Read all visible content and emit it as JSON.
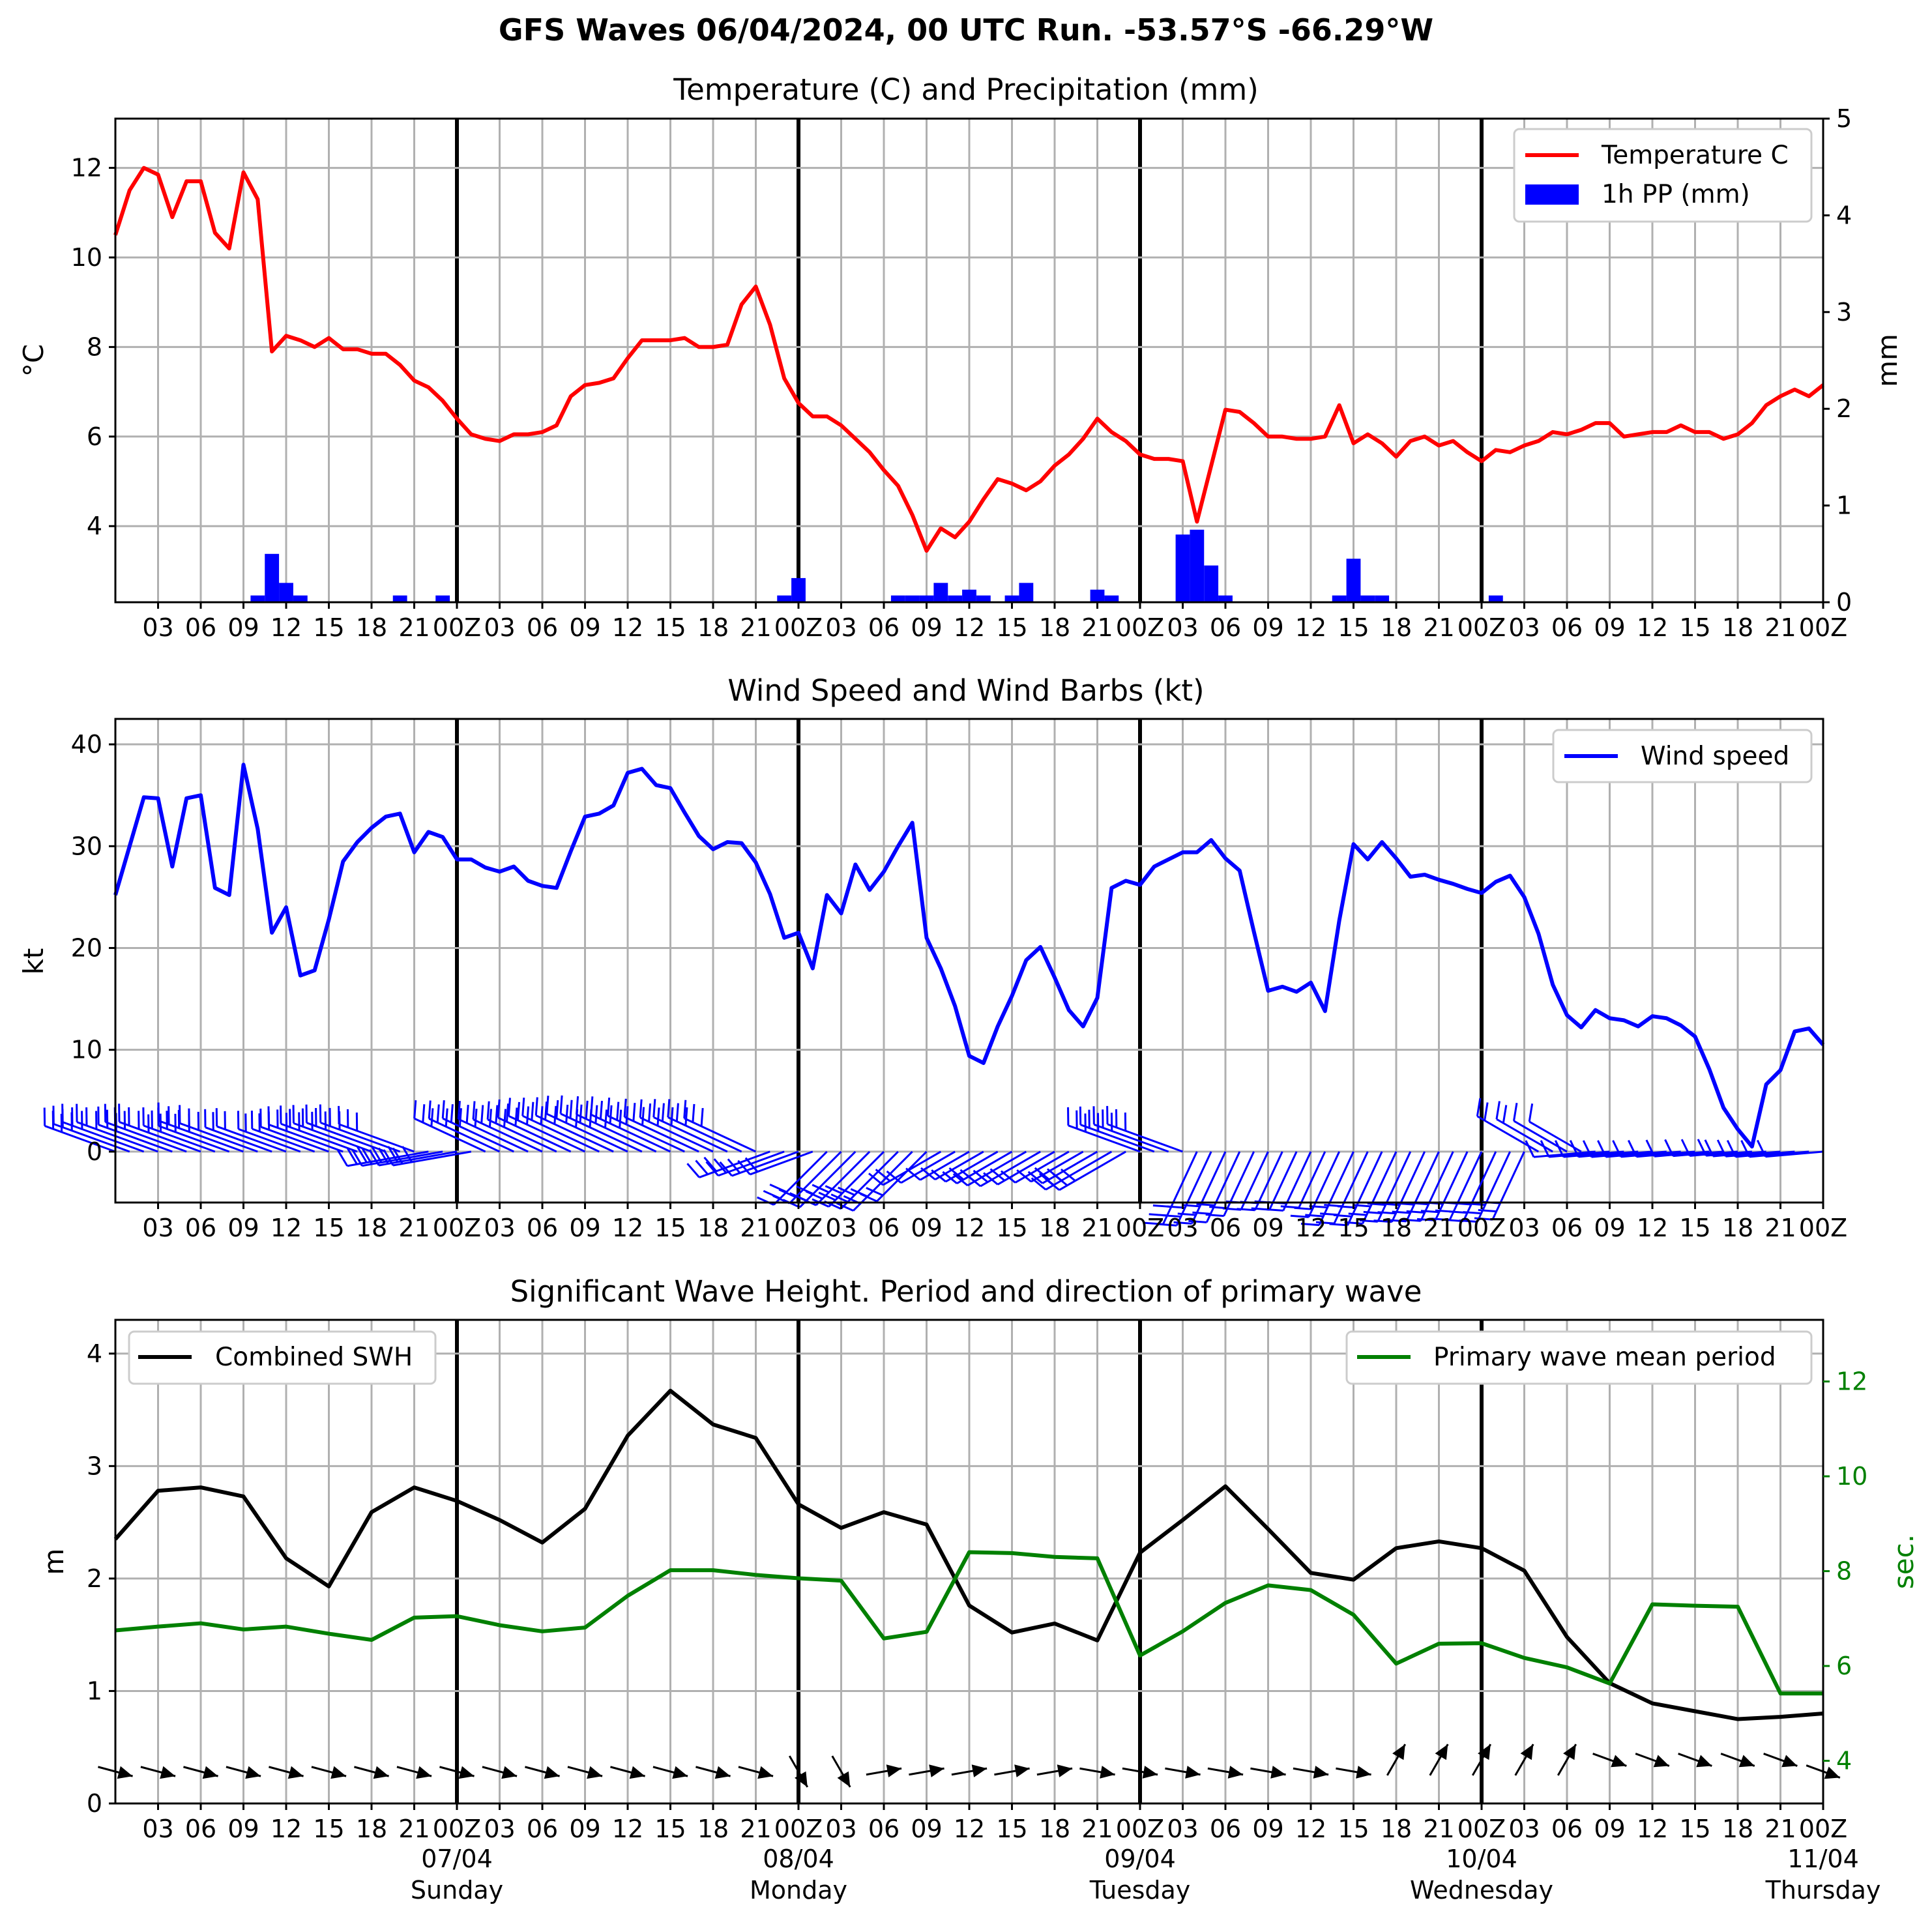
{
  "figure": {
    "suptitle": "GFS Waves 06/04/2024, 00 UTC Run. -53.57°S -66.29°W"
  },
  "colors": {
    "temperature": "#ff0000",
    "precip": "#0000ff",
    "wind": "#0000ff",
    "swh": "#000000",
    "period": "#008000",
    "grid": "#b0b0b0"
  },
  "x_tick_labels": [
    "03",
    "06",
    "09",
    "12",
    "15",
    "18",
    "21",
    "00Z",
    "03",
    "06",
    "09",
    "12",
    "15",
    "18",
    "21",
    "00Z",
    "03",
    "06",
    "09",
    "12",
    "15",
    "18",
    "21",
    "00Z",
    "03",
    "06",
    "09",
    "12",
    "15",
    "18",
    "21",
    "00Z",
    "03",
    "06",
    "09",
    "12",
    "15",
    "18",
    "21",
    "00Z"
  ],
  "day_labels": [
    {
      "date": "07/04",
      "day": "Sunday"
    },
    {
      "date": "08/04",
      "day": "Monday"
    },
    {
      "date": "09/04",
      "day": "Tuesday"
    },
    {
      "date": "10/04",
      "day": "Wednesday"
    },
    {
      "date": "11/04",
      "day": "Thursday"
    }
  ],
  "panels": {
    "temp": {
      "title": "Temperature (C) and Precipitation (mm)",
      "ylabel_left": "°C",
      "ylabel_right": "mm",
      "legend_temp": "Temperature C",
      "legend_pp": "1h PP (mm)",
      "y_ticks": [
        "4",
        "6",
        "8",
        "10",
        "12"
      ],
      "y2_ticks": [
        "0",
        "1",
        "2",
        "3",
        "4",
        "5"
      ]
    },
    "wind": {
      "title": "Wind Speed and Wind Barbs (kt)",
      "ylabel": "kt",
      "legend": "Wind speed",
      "y_ticks": [
        "0",
        "10",
        "20",
        "30",
        "40"
      ]
    },
    "wave": {
      "title": "Significant Wave Height. Period and direction of primary wave",
      "ylabel_left": "m",
      "ylabel_right": "sec.",
      "legend_swh": "Combined SWH",
      "legend_period": "Primary wave mean period",
      "y_ticks": [
        "0",
        "1",
        "2",
        "3",
        "4"
      ],
      "y2_ticks": [
        "4",
        "6",
        "8",
        "10",
        "12"
      ]
    }
  },
  "chart_data": [
    {
      "type": "line",
      "title": "Temperature (C) and Precipitation (mm)",
      "x_unit": "hours since 06/04 00Z",
      "ylabel": "°C",
      "ylim": [
        2.3,
        13.1
      ],
      "y2label": "mm",
      "y2lim": [
        0,
        5
      ],
      "grid": true,
      "legend_position": "top-right",
      "series": [
        {
          "name": "Temperature C",
          "x": [
            0,
            1,
            2,
            3,
            4,
            5,
            6,
            7,
            8,
            9,
            10,
            11,
            12,
            13,
            14,
            15,
            16,
            17,
            18,
            19,
            20,
            21,
            22,
            23,
            24,
            25,
            26,
            27,
            28,
            29,
            30,
            31,
            32,
            33,
            34,
            35,
            36,
            37,
            38,
            39,
            40,
            41,
            42,
            43,
            44,
            45,
            46,
            47,
            48,
            49,
            50,
            51,
            52,
            53,
            54,
            55,
            56,
            57,
            58,
            59,
            60,
            61,
            62,
            63,
            64,
            65,
            66,
            67,
            68,
            69,
            70,
            71,
            72,
            73,
            74,
            75,
            76,
            77,
            78,
            79,
            80,
            81,
            82,
            83,
            84,
            85,
            86,
            87,
            88,
            89,
            90,
            91,
            92,
            93,
            94,
            95,
            96,
            97,
            98,
            99,
            100,
            101,
            102,
            103,
            104,
            105,
            106,
            107,
            108,
            109,
            110,
            111,
            112,
            113,
            114,
            115,
            116,
            117,
            118,
            119,
            120
          ],
          "values": [
            10.5,
            11.5,
            12.0,
            11.85,
            10.9,
            11.7,
            11.7,
            10.55,
            10.2,
            11.9,
            11.3,
            7.9,
            8.25,
            8.15,
            8.0,
            8.2,
            7.95,
            7.95,
            7.85,
            7.85,
            7.6,
            7.25,
            7.1,
            6.8,
            6.4,
            6.05,
            5.95,
            5.9,
            6.05,
            6.05,
            6.1,
            6.25,
            6.9,
            7.15,
            7.2,
            7.3,
            7.75,
            8.15,
            8.15,
            8.15,
            8.2,
            8.0,
            8.0,
            8.05,
            8.95,
            9.35,
            8.5,
            7.3,
            6.75,
            6.45,
            6.45,
            6.25,
            5.95,
            5.65,
            5.25,
            4.9,
            4.25,
            3.45,
            3.95,
            3.75,
            4.1,
            4.6,
            5.05,
            4.95,
            4.8,
            5.0,
            5.35,
            5.6,
            5.95,
            6.4,
            6.1,
            5.9,
            5.6,
            5.5,
            5.5,
            5.45,
            4.1,
            5.35,
            6.6,
            6.55,
            6.3,
            6.0,
            6.0,
            5.95,
            5.95,
            6.0,
            6.7,
            5.85,
            6.05,
            5.85,
            5.55,
            5.9,
            6.0,
            5.8,
            5.9,
            5.65,
            5.45,
            5.7,
            5.65,
            5.8,
            5.9,
            6.1,
            6.05,
            6.15,
            6.3,
            6.3,
            6.0,
            6.05,
            6.1,
            6.1,
            6.25,
            6.1,
            6.1,
            5.95,
            6.05,
            6.3,
            6.7,
            6.9,
            7.05,
            6.9,
            7.15
          ]
        },
        {
          "name": "1h PP (mm)",
          "type": "bar",
          "x": [
            10,
            11,
            12,
            13,
            20,
            23,
            47,
            48,
            55,
            56,
            57,
            58,
            59,
            60,
            61,
            63,
            64,
            69,
            70,
            75,
            76,
            77,
            78,
            86,
            87,
            88,
            89,
            97
          ],
          "values": [
            0.07,
            0.5,
            0.2,
            0.07,
            0.07,
            0.07,
            0.07,
            0.25,
            0.07,
            0.07,
            0.07,
            0.2,
            0.07,
            0.13,
            0.07,
            0.07,
            0.2,
            0.13,
            0.07,
            0.7,
            0.75,
            0.38,
            0.07,
            0.07,
            0.45,
            0.07,
            0.07,
            0.07
          ]
        }
      ]
    },
    {
      "type": "line",
      "title": "Wind Speed and Wind Barbs (kt)",
      "x_unit": "hours since 06/04 00Z",
      "ylabel": "kt",
      "ylim": [
        -5,
        42.5
      ],
      "grid": true,
      "legend_position": "top-right",
      "series": [
        {
          "name": "Wind speed",
          "x": [
            0,
            1,
            2,
            3,
            4,
            5,
            6,
            7,
            8,
            9,
            10,
            11,
            12,
            13,
            14,
            15,
            16,
            17,
            18,
            19,
            20,
            21,
            22,
            23,
            24,
            25,
            26,
            27,
            28,
            29,
            30,
            31,
            32,
            33,
            34,
            35,
            36,
            37,
            38,
            39,
            40,
            41,
            42,
            43,
            44,
            45,
            46,
            47,
            48,
            49,
            50,
            51,
            52,
            53,
            54,
            55,
            56,
            57,
            58,
            59,
            60,
            61,
            62,
            63,
            64,
            65,
            66,
            67,
            68,
            69,
            70,
            71,
            72,
            73,
            74,
            75,
            76,
            77,
            78,
            79,
            80,
            81,
            82,
            83,
            84,
            85,
            86,
            87,
            88,
            89,
            90,
            91,
            92,
            93,
            94,
            95,
            96,
            97,
            98,
            99,
            100,
            101,
            102,
            103,
            104,
            105,
            106,
            107,
            108,
            109,
            110,
            111,
            112,
            113,
            114,
            115,
            116,
            117,
            118,
            119,
            120
          ],
          "values": [
            25.2,
            30.0,
            34.8,
            34.7,
            28.0,
            34.7,
            35.0,
            25.9,
            25.2,
            38.0,
            31.7,
            21.5,
            24.0,
            17.3,
            17.8,
            22.8,
            28.5,
            30.4,
            31.8,
            32.9,
            33.2,
            29.4,
            31.4,
            30.9,
            28.7,
            28.7,
            27.9,
            27.5,
            28.0,
            26.6,
            26.1,
            25.9,
            29.5,
            32.9,
            33.2,
            34.0,
            37.2,
            37.6,
            36.0,
            35.7,
            33.3,
            31.0,
            29.7,
            30.4,
            30.3,
            28.4,
            25.3,
            21.0,
            21.5,
            18.0,
            25.2,
            23.4,
            28.2,
            25.7,
            27.5,
            30.0,
            32.3,
            21.0,
            18.0,
            14.3,
            9.4,
            8.7,
            12.3,
            15.3,
            18.8,
            20.1,
            17.1,
            13.9,
            12.3,
            15.1,
            25.9,
            26.6,
            26.2,
            28.0,
            28.7,
            29.4,
            29.4,
            30.6,
            28.8,
            27.6,
            21.6,
            15.8,
            16.2,
            15.7,
            16.6,
            13.8,
            22.7,
            30.2,
            28.7,
            30.4,
            28.8,
            27.0,
            27.2,
            26.7,
            26.3,
            25.8,
            25.4,
            26.5,
            27.1,
            25.0,
            21.4,
            16.4,
            13.4,
            12.2,
            13.9,
            13.1,
            12.9,
            12.3,
            13.3,
            13.1,
            12.4,
            11.3,
            8.1,
            4.3,
            2.2,
            0.5,
            6.6,
            8.0,
            11.8,
            12.1,
            10.5
          ]
        }
      ]
    },
    {
      "type": "line",
      "title": "Significant Wave Height. Period and direction of primary wave",
      "x_unit": "hours since 06/04 00Z",
      "ylabel": "m",
      "ylim": [
        0,
        4.3
      ],
      "y2label": "sec.",
      "y2lim": [
        3.1,
        13.3
      ],
      "grid": true,
      "series": [
        {
          "name": "Combined SWH",
          "x": [
            0,
            3,
            6,
            9,
            12,
            15,
            18,
            21,
            24,
            27,
            30,
            33,
            36,
            39,
            42,
            45,
            48,
            51,
            54,
            57,
            60,
            63,
            66,
            69,
            72,
            75,
            78,
            81,
            84,
            87,
            90,
            93,
            96,
            99,
            102,
            105,
            108,
            111,
            114,
            117,
            120
          ],
          "values": [
            2.35,
            2.78,
            2.81,
            2.73,
            2.18,
            1.93,
            2.59,
            2.81,
            2.69,
            2.52,
            2.32,
            2.62,
            3.27,
            3.67,
            3.37,
            3.25,
            2.66,
            2.45,
            2.59,
            2.48,
            1.76,
            1.52,
            1.6,
            1.45,
            2.23,
            2.52,
            2.82,
            2.44,
            2.05,
            1.99,
            2.27,
            2.33,
            2.27,
            2.07,
            1.48,
            1.07,
            0.89,
            0.82,
            0.75,
            0.77,
            0.8
          ]
        },
        {
          "name": "Primary wave mean period",
          "x": [
            0,
            3,
            6,
            9,
            12,
            15,
            18,
            21,
            24,
            27,
            30,
            33,
            36,
            39,
            42,
            45,
            48,
            51,
            54,
            57,
            60,
            63,
            66,
            69,
            72,
            75,
            78,
            81,
            84,
            87,
            90,
            93,
            96,
            99,
            102,
            105,
            108,
            111,
            114,
            117,
            120
          ],
          "values": [
            6.75,
            6.83,
            6.9,
            6.77,
            6.83,
            6.68,
            6.55,
            7.02,
            7.05,
            6.86,
            6.73,
            6.81,
            7.48,
            8.02,
            8.02,
            7.92,
            7.85,
            7.8,
            6.58,
            6.72,
            8.4,
            8.38,
            8.3,
            8.27,
            6.22,
            6.73,
            7.33,
            7.7,
            7.6,
            7.08,
            6.05,
            6.47,
            6.48,
            6.17,
            5.97,
            5.63,
            7.3,
            7.27,
            7.25,
            5.42,
            5.42
          ]
        }
      ]
    }
  ]
}
